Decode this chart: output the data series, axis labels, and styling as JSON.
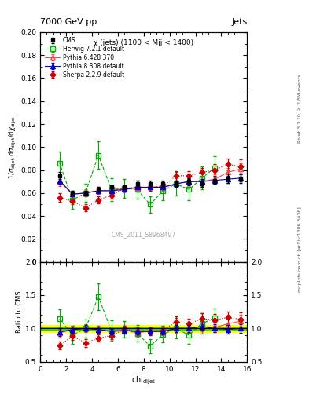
{
  "title_main": "7000 GeV pp",
  "title_right": "Jets",
  "plot_title": "χ (jets) (1100 < Mjj < 1400)",
  "watermark": "CMS_2011_S8968497",
  "rivet_label": "Rivet 3.1.10, ≥ 2.8M events",
  "arxiv_label": "mcplots.cern.ch [arXiv:1306.3436]",
  "ylabel_ratio": "Ratio to CMS",
  "xlim": [
    0,
    16
  ],
  "ylim_main": [
    0,
    0.2
  ],
  "ylim_ratio": [
    0.5,
    2.0
  ],
  "yticks_main": [
    0,
    0.02,
    0.04,
    0.06,
    0.08,
    0.1,
    0.12,
    0.14,
    0.16,
    0.18,
    0.2
  ],
  "yticks_ratio": [
    0.5,
    1.0,
    1.5,
    2.0
  ],
  "cms_x": [
    1.5,
    2.5,
    3.5,
    4.5,
    5.5,
    6.5,
    7.5,
    8.5,
    9.5,
    10.5,
    11.5,
    12.5,
    13.5,
    14.5,
    15.5
  ],
  "cms_y": [
    0.075,
    0.06,
    0.06,
    0.063,
    0.065,
    0.065,
    0.068,
    0.068,
    0.068,
    0.068,
    0.07,
    0.068,
    0.071,
    0.073,
    0.073
  ],
  "cms_yerr": [
    0.003,
    0.002,
    0.002,
    0.002,
    0.002,
    0.002,
    0.003,
    0.003,
    0.003,
    0.003,
    0.003,
    0.003,
    0.003,
    0.004,
    0.004
  ],
  "herwig_x": [
    1.5,
    2.5,
    3.5,
    4.5,
    5.5,
    6.5,
    7.5,
    8.5,
    9.5,
    10.5,
    11.5,
    12.5,
    13.5
  ],
  "herwig_y": [
    0.086,
    0.054,
    0.06,
    0.093,
    0.063,
    0.064,
    0.063,
    0.05,
    0.062,
    0.068,
    0.063,
    0.073,
    0.082
  ],
  "herwig_yerr": [
    0.01,
    0.008,
    0.008,
    0.012,
    0.01,
    0.008,
    0.008,
    0.007,
    0.008,
    0.01,
    0.009,
    0.01,
    0.01
  ],
  "pythia6_x": [
    1.5,
    2.5,
    3.5,
    4.5,
    5.5,
    6.5,
    7.5,
    8.5,
    9.5,
    10.5,
    11.5,
    12.5,
    13.5,
    14.5,
    15.5
  ],
  "pythia6_y": [
    0.07,
    0.059,
    0.06,
    0.062,
    0.062,
    0.064,
    0.064,
    0.065,
    0.065,
    0.068,
    0.07,
    0.07,
    0.072,
    0.078,
    0.081
  ],
  "pythia6_yerr": [
    0.004,
    0.003,
    0.003,
    0.003,
    0.003,
    0.003,
    0.003,
    0.003,
    0.003,
    0.003,
    0.003,
    0.004,
    0.004,
    0.004,
    0.005
  ],
  "pythia8_x": [
    1.5,
    2.5,
    3.5,
    4.5,
    5.5,
    6.5,
    7.5,
    8.5,
    9.5,
    10.5,
    11.5,
    12.5,
    13.5,
    14.5,
    15.5
  ],
  "pythia8_y": [
    0.071,
    0.059,
    0.06,
    0.062,
    0.062,
    0.063,
    0.065,
    0.065,
    0.065,
    0.068,
    0.07,
    0.07,
    0.071,
    0.072,
    0.073
  ],
  "pythia8_yerr": [
    0.003,
    0.002,
    0.002,
    0.002,
    0.002,
    0.002,
    0.002,
    0.002,
    0.002,
    0.002,
    0.002,
    0.002,
    0.003,
    0.003,
    0.003
  ],
  "sherpa_x": [
    1.5,
    2.5,
    3.5,
    4.5,
    5.5,
    6.5,
    7.5,
    8.5,
    9.5,
    10.5,
    11.5,
    12.5,
    13.5,
    14.5,
    15.5
  ],
  "sherpa_y": [
    0.056,
    0.053,
    0.047,
    0.054,
    0.058,
    0.064,
    0.065,
    0.065,
    0.066,
    0.075,
    0.075,
    0.078,
    0.08,
    0.085,
    0.083
  ],
  "sherpa_yerr": [
    0.004,
    0.003,
    0.003,
    0.003,
    0.003,
    0.003,
    0.003,
    0.003,
    0.003,
    0.004,
    0.004,
    0.004,
    0.005,
    0.005,
    0.006
  ],
  "cms_color": "#000000",
  "herwig_color": "#00aa00",
  "pythia6_color": "#ff4444",
  "pythia8_color": "#0000cc",
  "sherpa_color": "#cc0000"
}
